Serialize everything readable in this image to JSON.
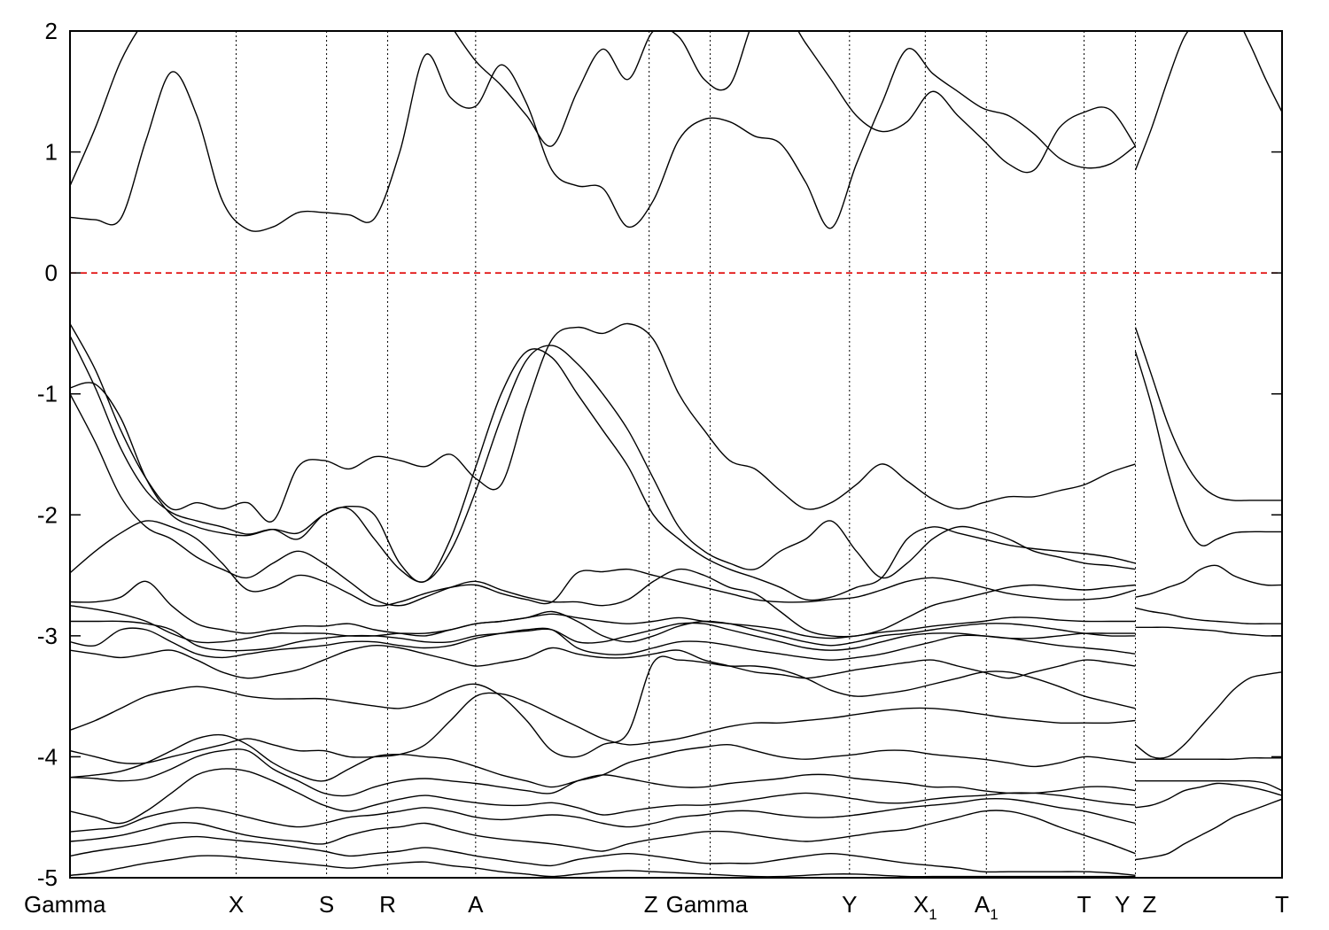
{
  "chart_data": {
    "type": "line",
    "title": "",
    "xlabel": "",
    "ylabel": "",
    "ylim": [
      -5,
      2
    ],
    "y_ticks": [
      2,
      1,
      0,
      -1,
      -2,
      -3,
      -4,
      -5
    ],
    "fermi_level": {
      "y": 0,
      "color": "#e00000",
      "style": "dashed"
    },
    "kpoint_positions": [
      0,
      1.36,
      2.1,
      2.6,
      3.32,
      4.74,
      5.24,
      6.38,
      7.0,
      7.5,
      8.3,
      8.72,
      8.72,
      9.92
    ],
    "kpoint_labels": [
      {
        "text": "Gamma",
        "sub": ""
      },
      {
        "text": "X",
        "sub": ""
      },
      {
        "text": "S",
        "sub": ""
      },
      {
        "text": "R",
        "sub": ""
      },
      {
        "text": "A",
        "sub": ""
      },
      {
        "text": "Z",
        "sub": ""
      },
      {
        "text": "Gamma",
        "sub": ""
      },
      {
        "text": "Y",
        "sub": ""
      },
      {
        "text": "X",
        "sub": "1"
      },
      {
        "text": "A",
        "sub": "1"
      },
      {
        "text": "T",
        "sub": ""
      },
      {
        "text": "Y",
        "sub": ""
      },
      {
        "text": "Z",
        "sub": ""
      },
      {
        "text": "T",
        "sub": ""
      }
    ],
    "xlim": [
      0,
      9.92
    ],
    "break_at": 8.72,
    "series": [
      {
        "values": [
          0.72,
          1.2,
          1.75,
          2.1,
          2.3,
          2.4,
          2.45,
          2.55,
          2.4,
          2.5,
          2.6,
          2.5,
          2.55,
          2.5,
          2.4,
          2.05,
          1.75,
          1.55,
          1.3,
          1.05,
          1.5,
          1.85,
          1.6,
          2.0,
          1.95,
          1.6,
          1.55,
          2.1,
          2.2,
          1.9,
          1.6,
          1.3,
          1.17,
          1.25,
          1.5,
          1.3,
          1.1,
          0.9,
          0.85,
          1.2,
          1.33,
          1.35,
          1.05
        ]
      },
      {
        "values": [
          0.46,
          0.44,
          0.45,
          1.1,
          1.66,
          1.3,
          0.6,
          0.36,
          0.38,
          0.5,
          0.5,
          0.48,
          0.45,
          1.0,
          1.8,
          1.45,
          1.38,
          1.72,
          1.4,
          0.85,
          0.72,
          0.7,
          0.38,
          0.6,
          1.1,
          1.27,
          1.25,
          1.13,
          1.07,
          0.75,
          0.37,
          0.9,
          1.4,
          1.85,
          1.65,
          1.5,
          1.36,
          1.3,
          1.15,
          0.95,
          0.87,
          0.9,
          1.05
        ]
      },
      {
        "values": [
          -0.42,
          -0.8,
          -1.3,
          -1.7,
          -1.95,
          -1.9,
          -1.95,
          -1.9,
          -2.05,
          -1.6,
          -1.55,
          -1.62,
          -1.52,
          -1.55,
          -1.6,
          -1.5,
          -1.7,
          -1.75,
          -1.1,
          -0.55,
          -0.45,
          -0.5,
          -0.42,
          -0.55,
          -1.0,
          -1.3,
          -1.55,
          -1.62,
          -1.8,
          -1.95,
          -1.9,
          -1.75,
          -1.58,
          -1.72,
          -1.87,
          -1.95,
          -1.9,
          -1.85,
          -1.85,
          -1.8,
          -1.75,
          -1.65,
          -1.58
        ]
      },
      {
        "values": [
          -0.52,
          -0.95,
          -1.45,
          -1.8,
          -1.98,
          -2.05,
          -2.1,
          -2.16,
          -2.12,
          -2.2,
          -2.0,
          -1.95,
          -2.2,
          -2.45,
          -2.55,
          -2.3,
          -1.8,
          -1.2,
          -0.72,
          -0.6,
          -0.75,
          -1.0,
          -1.3,
          -1.7,
          -2.1,
          -2.3,
          -2.4,
          -2.45,
          -2.3,
          -2.2,
          -2.05,
          -2.3,
          -2.52,
          -2.4,
          -2.2,
          -2.1,
          -2.13,
          -2.2,
          -2.3,
          -2.35,
          -2.4,
          -2.42,
          -2.45
        ]
      },
      {
        "values": [
          -0.95,
          -0.92,
          -1.2,
          -1.7,
          -2.0,
          -2.1,
          -2.15,
          -2.17,
          -2.12,
          -2.15,
          -2.0,
          -1.93,
          -2.0,
          -2.4,
          -2.55,
          -2.2,
          -1.6,
          -1.0,
          -0.65,
          -0.7,
          -1.0,
          -1.3,
          -1.6,
          -2.0,
          -2.2,
          -2.35,
          -2.45,
          -2.52,
          -2.6,
          -2.7,
          -2.68,
          -2.6,
          -2.52,
          -2.2,
          -2.1,
          -2.15,
          -2.2,
          -2.25,
          -2.28,
          -2.3,
          -2.32,
          -2.35,
          -2.4
        ]
      },
      {
        "values": [
          -1.0,
          -1.4,
          -1.85,
          -2.1,
          -2.2,
          -2.35,
          -2.45,
          -2.52,
          -2.4,
          -2.3,
          -2.4,
          -2.55,
          -2.7,
          -2.75,
          -2.68,
          -2.6,
          -2.55,
          -2.62,
          -2.68,
          -2.72,
          -2.72,
          -2.75,
          -2.7,
          -2.55,
          -2.45,
          -2.5,
          -2.6,
          -2.65,
          -2.8,
          -2.95,
          -3.0,
          -3.0,
          -2.95,
          -2.85,
          -2.75,
          -2.7,
          -2.65,
          -2.6,
          -2.58,
          -2.6,
          -2.62,
          -2.6,
          -2.58
        ]
      },
      {
        "values": [
          -2.48,
          -2.3,
          -2.15,
          -2.05,
          -2.1,
          -2.2,
          -2.4,
          -2.62,
          -2.6,
          -2.5,
          -2.55,
          -2.65,
          -2.75,
          -2.72,
          -2.65,
          -2.6,
          -2.58,
          -2.65,
          -2.7,
          -2.72,
          -2.48,
          -2.47,
          -2.45,
          -2.5,
          -2.55,
          -2.6,
          -2.65,
          -2.7,
          -2.72,
          -2.72,
          -2.7,
          -2.68,
          -2.62,
          -2.55,
          -2.52,
          -2.55,
          -2.6,
          -2.65,
          -2.68,
          -2.7,
          -2.7,
          -2.68,
          -2.62
        ]
      },
      {
        "values": [
          -2.72,
          -2.72,
          -2.68,
          -2.55,
          -2.75,
          -2.9,
          -2.95,
          -2.98,
          -2.95,
          -2.92,
          -2.92,
          -2.9,
          -2.95,
          -2.98,
          -3.0,
          -2.95,
          -2.9,
          -2.88,
          -2.85,
          -2.82,
          -2.85,
          -2.88,
          -2.9,
          -2.88,
          -2.85,
          -2.88,
          -2.9,
          -2.92,
          -2.95,
          -3.0,
          -3.02,
          -3.0,
          -2.97,
          -2.95,
          -2.92,
          -2.9,
          -2.88,
          -2.85,
          -2.85,
          -2.87,
          -2.88,
          -2.88,
          -2.88
        ]
      },
      {
        "values": [
          -2.75,
          -2.78,
          -2.82,
          -2.88,
          -2.98,
          -3.05,
          -3.05,
          -3.02,
          -2.98,
          -2.98,
          -2.98,
          -3.0,
          -3.0,
          -2.98,
          -2.98,
          -2.95,
          -2.9,
          -2.88,
          -2.85,
          -2.8,
          -2.88,
          -3.0,
          -3.05,
          -3.0,
          -2.92,
          -2.88,
          -2.9,
          -2.95,
          -3.0,
          -3.05,
          -3.08,
          -3.05,
          -3.0,
          -2.98,
          -2.95,
          -2.92,
          -2.9,
          -2.9,
          -2.92,
          -2.95,
          -2.98,
          -3.0,
          -3.0
        ]
      },
      {
        "values": [
          -2.88,
          -2.88,
          -2.88,
          -2.9,
          -2.95,
          -3.08,
          -3.12,
          -3.12,
          -3.1,
          -3.05,
          -3.02,
          -3.0,
          -3.0,
          -3.02,
          -3.05,
          -3.05,
          -3.0,
          -2.98,
          -2.96,
          -2.95,
          -3.05,
          -3.05,
          -3.0,
          -2.95,
          -2.9,
          -2.9,
          -2.95,
          -3.0,
          -3.05,
          -3.1,
          -3.12,
          -3.1,
          -3.05,
          -3.0,
          -2.98,
          -2.98,
          -3.0,
          -3.02,
          -3.02,
          -3.0,
          -2.98,
          -2.98,
          -2.98
        ]
      },
      {
        "values": [
          -3.05,
          -3.08,
          -2.95,
          -2.95,
          -3.05,
          -3.15,
          -3.18,
          -3.15,
          -3.12,
          -3.1,
          -3.08,
          -3.05,
          -3.05,
          -3.08,
          -3.1,
          -3.08,
          -3.02,
          -2.98,
          -2.95,
          -2.95,
          -3.1,
          -3.15,
          -3.15,
          -3.1,
          -3.05,
          -3.05,
          -3.08,
          -3.12,
          -3.15,
          -3.18,
          -3.2,
          -3.18,
          -3.15,
          -3.1,
          -3.05,
          -3.0,
          -3.0,
          -3.02,
          -3.05,
          -3.08,
          -3.1,
          -3.12,
          -3.15
        ]
      },
      {
        "values": [
          -3.12,
          -3.15,
          -3.18,
          -3.15,
          -3.12,
          -3.2,
          -3.3,
          -3.35,
          -3.32,
          -3.28,
          -3.2,
          -3.12,
          -3.08,
          -3.1,
          -3.15,
          -3.2,
          -3.25,
          -3.22,
          -3.18,
          -3.1,
          -3.15,
          -3.18,
          -3.18,
          -3.15,
          -3.12,
          -3.2,
          -3.25,
          -3.3,
          -3.32,
          -3.35,
          -3.32,
          -3.28,
          -3.25,
          -3.22,
          -3.2,
          -3.25,
          -3.3,
          -3.35,
          -3.3,
          -3.25,
          -3.2,
          -3.22,
          -3.25
        ]
      },
      {
        "values": [
          -3.78,
          -3.7,
          -3.6,
          -3.5,
          -3.45,
          -3.42,
          -3.45,
          -3.5,
          -3.52,
          -3.52,
          -3.52,
          -3.55,
          -3.58,
          -3.6,
          -3.55,
          -3.45,
          -3.4,
          -3.5,
          -3.7,
          -3.95,
          -4.0,
          -3.9,
          -3.8,
          -3.22,
          -3.2,
          -3.22,
          -3.25,
          -3.25,
          -3.28,
          -3.35,
          -3.45,
          -3.5,
          -3.48,
          -3.45,
          -3.4,
          -3.35,
          -3.3,
          -3.3,
          -3.35,
          -3.42,
          -3.5,
          -3.55,
          -3.6
        ]
      },
      {
        "values": [
          -3.95,
          -4.0,
          -4.05,
          -4.05,
          -4.0,
          -3.95,
          -3.9,
          -3.85,
          -3.9,
          -3.95,
          -3.95,
          -4.0,
          -4.0,
          -3.98,
          -3.9,
          -3.7,
          -3.5,
          -3.48,
          -3.55,
          -3.65,
          -3.75,
          -3.85,
          -3.9,
          -3.88,
          -3.85,
          -3.8,
          -3.75,
          -3.72,
          -3.72,
          -3.7,
          -3.68,
          -3.65,
          -3.62,
          -3.6,
          -3.6,
          -3.62,
          -3.65,
          -3.68,
          -3.7,
          -3.72,
          -3.72,
          -3.72,
          -3.7
        ]
      },
      {
        "values": [
          -4.17,
          -4.15,
          -4.12,
          -4.05,
          -3.95,
          -3.85,
          -3.82,
          -3.9,
          -4.05,
          -4.15,
          -4.2,
          -4.1,
          -4.0,
          -3.98,
          -4.0,
          -4.02,
          -4.08,
          -4.15,
          -4.2,
          -4.25,
          -4.2,
          -4.15,
          -4.05,
          -4.0,
          -3.95,
          -3.92,
          -3.9,
          -3.95,
          -4.0,
          -4.02,
          -4.0,
          -3.98,
          -3.95,
          -3.95,
          -3.98,
          -4.0,
          -4.02,
          -4.05,
          -4.08,
          -4.05,
          -4.0,
          -4.02,
          -4.05
        ]
      },
      {
        "values": [
          -4.17,
          -4.18,
          -4.2,
          -4.18,
          -4.1,
          -4.0,
          -3.95,
          -3.95,
          -4.1,
          -4.2,
          -4.3,
          -4.32,
          -4.25,
          -4.2,
          -4.18,
          -4.2,
          -4.22,
          -4.25,
          -4.28,
          -4.3,
          -4.2,
          -4.15,
          -4.18,
          -4.22,
          -4.25,
          -4.25,
          -4.22,
          -4.2,
          -4.18,
          -4.15,
          -4.15,
          -4.18,
          -4.2,
          -4.22,
          -4.25,
          -4.25,
          -4.28,
          -4.3,
          -4.3,
          -4.28,
          -4.25,
          -4.25,
          -4.28
        ]
      },
      {
        "values": [
          -4.45,
          -4.5,
          -4.55,
          -4.45,
          -4.3,
          -4.15,
          -4.1,
          -4.12,
          -4.2,
          -4.3,
          -4.4,
          -4.45,
          -4.4,
          -4.35,
          -4.32,
          -4.35,
          -4.38,
          -4.4,
          -4.4,
          -4.38,
          -4.42,
          -4.48,
          -4.45,
          -4.42,
          -4.4,
          -4.4,
          -4.38,
          -4.35,
          -4.32,
          -4.3,
          -4.32,
          -4.35,
          -4.38,
          -4.38,
          -4.35,
          -4.33,
          -4.32,
          -4.3,
          -4.3,
          -4.32,
          -4.35,
          -4.38,
          -4.4
        ]
      },
      {
        "values": [
          -4.62,
          -4.6,
          -4.58,
          -4.5,
          -4.45,
          -4.42,
          -4.45,
          -4.5,
          -4.55,
          -4.58,
          -4.55,
          -4.5,
          -4.48,
          -4.45,
          -4.42,
          -4.45,
          -4.5,
          -4.52,
          -4.5,
          -4.48,
          -4.5,
          -4.55,
          -4.58,
          -4.55,
          -4.5,
          -4.48,
          -4.45,
          -4.45,
          -4.48,
          -4.5,
          -4.5,
          -4.48,
          -4.45,
          -4.42,
          -4.4,
          -4.38,
          -4.35,
          -4.35,
          -4.38,
          -4.42,
          -4.45,
          -4.5,
          -4.55
        ]
      },
      {
        "values": [
          -4.7,
          -4.68,
          -4.65,
          -4.6,
          -4.55,
          -4.55,
          -4.6,
          -4.65,
          -4.68,
          -4.7,
          -4.72,
          -4.65,
          -4.6,
          -4.58,
          -4.55,
          -4.6,
          -4.65,
          -4.68,
          -4.7,
          -4.72,
          -4.75,
          -4.78,
          -4.72,
          -4.68,
          -4.65,
          -4.62,
          -4.62,
          -4.65,
          -4.68,
          -4.7,
          -4.68,
          -4.65,
          -4.62,
          -4.6,
          -4.55,
          -4.5,
          -4.45,
          -4.45,
          -4.5,
          -4.58,
          -4.65,
          -4.72,
          -4.8
        ]
      },
      {
        "values": [
          -4.82,
          -4.78,
          -4.75,
          -4.72,
          -4.68,
          -4.66,
          -4.68,
          -4.7,
          -4.72,
          -4.75,
          -4.78,
          -4.82,
          -4.8,
          -4.78,
          -4.75,
          -4.78,
          -4.82,
          -4.85,
          -4.88,
          -4.9,
          -4.85,
          -4.82,
          -4.8,
          -4.82,
          -4.85,
          -4.88,
          -4.88,
          -4.88,
          -4.85,
          -4.82,
          -4.8,
          -4.82,
          -4.85,
          -4.88,
          -4.9,
          -4.92,
          -4.95,
          -4.95,
          -4.95,
          -4.95,
          -4.95,
          -4.96,
          -4.98
        ]
      },
      {
        "values": [
          -4.98,
          -4.96,
          -4.92,
          -4.88,
          -4.85,
          -4.82,
          -4.82,
          -4.84,
          -4.86,
          -4.88,
          -4.9,
          -4.92,
          -4.9,
          -4.88,
          -4.87,
          -4.9,
          -4.92,
          -4.95,
          -4.97,
          -4.99,
          -4.97,
          -4.95,
          -4.94,
          -4.95,
          -4.96,
          -4.97,
          -4.98,
          -4.99,
          -4.99,
          -4.98,
          -4.97,
          -4.97,
          -4.98,
          -4.99,
          -4.99,
          -4.99,
          -4.99,
          -4.99,
          -4.99,
          -4.99,
          -4.99,
          -4.99,
          -4.99
        ]
      }
    ],
    "right_panel_series": [
      {
        "values": [
          0.85,
          1.2,
          1.6,
          1.95,
          2.1,
          2.2,
          2.15,
          1.9,
          1.6,
          1.33
        ]
      },
      {
        "values": [
          -0.45,
          -0.85,
          -1.25,
          -1.55,
          -1.75,
          -1.85,
          -1.88,
          -1.88,
          -1.88,
          -1.88
        ]
      },
      {
        "values": [
          -0.65,
          -1.1,
          -1.65,
          -2.05,
          -2.25,
          -2.2,
          -2.15,
          -2.14,
          -2.14,
          -2.14
        ]
      },
      {
        "values": [
          -2.68,
          -2.65,
          -2.6,
          -2.55,
          -2.45,
          -2.42,
          -2.5,
          -2.55,
          -2.58,
          -2.58
        ]
      },
      {
        "values": [
          -2.77,
          -2.8,
          -2.82,
          -2.85,
          -2.87,
          -2.88,
          -2.89,
          -2.9,
          -2.9,
          -2.9
        ]
      },
      {
        "values": [
          -2.93,
          -2.93,
          -2.93,
          -2.94,
          -2.95,
          -2.96,
          -2.98,
          -2.99,
          -3.0,
          -3.0
        ]
      },
      {
        "values": [
          -3.9,
          -4.0,
          -4.0,
          -3.9,
          -3.75,
          -3.6,
          -3.45,
          -3.35,
          -3.32,
          -3.3
        ]
      },
      {
        "values": [
          -4.02,
          -4.02,
          -4.02,
          -4.02,
          -4.02,
          -4.02,
          -4.02,
          -4.01,
          -4.01,
          -4.01
        ]
      },
      {
        "values": [
          -4.2,
          -4.2,
          -4.2,
          -4.2,
          -4.2,
          -4.2,
          -4.2,
          -4.2,
          -4.22,
          -4.28
        ]
      },
      {
        "values": [
          -4.42,
          -4.4,
          -4.35,
          -4.28,
          -4.25,
          -4.22,
          -4.23,
          -4.25,
          -4.28,
          -4.32
        ]
      },
      {
        "values": [
          -4.85,
          -4.83,
          -4.8,
          -4.72,
          -4.65,
          -4.58,
          -4.5,
          -4.45,
          -4.4,
          -4.35
        ]
      }
    ]
  }
}
